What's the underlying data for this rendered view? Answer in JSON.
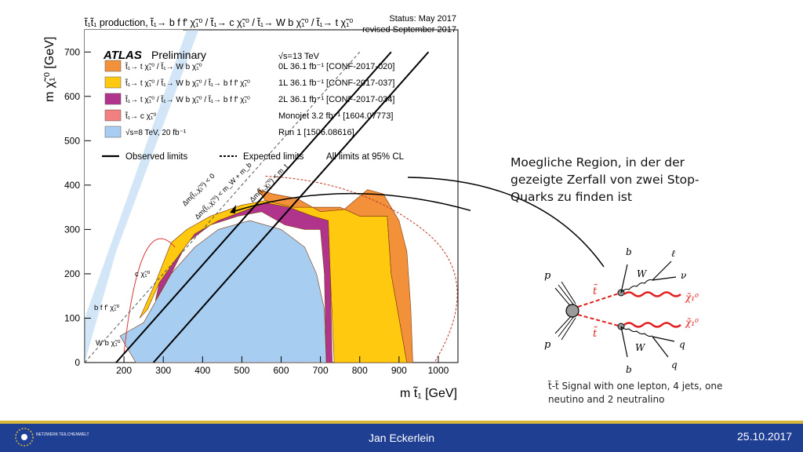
{
  "chart_data": {
    "type": "area",
    "title": "t̃₁t̃₁ production, t̃₁→ b f f' χ̃₁⁰ / t̃₁→ c χ̃₁⁰ / t̃₁→ W b χ̃₁⁰ / t̃₁→ t χ̃₁⁰",
    "status": "Status: May 2017",
    "revised": "revised September 2017",
    "experiment": "ATLAS",
    "experiment_tag": "Preliminary",
    "energy": "√s=13 TeV",
    "xlabel": "m t̃₁ [GeV]",
    "ylabel": "m χ̃₁⁰ [GeV]",
    "xlim": [
      100,
      1050
    ],
    "ylim": [
      0,
      750
    ],
    "x_ticks": [
      200,
      300,
      400,
      500,
      600,
      700,
      800,
      900,
      1000
    ],
    "y_ticks": [
      0,
      100,
      200,
      300,
      400,
      500,
      600,
      700
    ],
    "legend": [
      {
        "decay": "t̃₁→ t χ̃₁⁰ / t̃₁→ W b χ̃₁⁰",
        "analysis": "0L 36.1 fb⁻¹ [CONF-2017-020]",
        "color": "#f2913a"
      },
      {
        "decay": "t̃₁→ t χ̃₁⁰ / t̃₁→ W b χ̃₁⁰ / t̃₁→ b f f' χ̃₁⁰",
        "analysis": "1L 36.1 fb⁻¹ [CONF-2017-037]",
        "color": "#ffc90f"
      },
      {
        "decay": "t̃₁→ t χ̃₁⁰ / t̃₁→ W b χ̃₁⁰ / t̃₁→ b f f' χ̃₁⁰",
        "analysis": "2L 36.1 fb⁻¹ [CONF-2017-034]",
        "color": "#b0338c"
      },
      {
        "decay": "t̃₁→ c χ̃₁⁰",
        "analysis": "Monojet 3.2 fb⁻¹ [1604.07773]",
        "color": "#f28080"
      },
      {
        "decay": "√s=8 TeV, 20 fb⁻¹",
        "analysis": "Run 1 [1506.08616]",
        "color": "#a7cdf1"
      }
    ],
    "line_legend": {
      "observed": "Observed limits",
      "expected": "Expected limits",
      "cl": "All limits at 95% CL"
    },
    "diagonal_labels": [
      "Δm(t̃₁,χ̃₁⁰) < 0",
      "Δm(t̃₁,χ̃₁⁰) < m_W + m_b",
      "Δm(t̃₁,χ̃₁⁰) < m_t"
    ],
    "region_labels": [
      "c χ̃₁⁰",
      "b f f' χ̃₁⁰",
      "W b χ̃₁⁰"
    ],
    "series": [
      {
        "name": "Run 1",
        "points": [
          [
            190,
            60
          ],
          [
            250,
            90
          ],
          [
            320,
            200
          ],
          [
            380,
            260
          ],
          [
            440,
            300
          ],
          [
            520,
            320
          ],
          [
            600,
            300
          ],
          [
            660,
            260
          ],
          [
            690,
            200
          ],
          [
            710,
            120
          ],
          [
            715,
            0
          ],
          [
            230,
            0
          ]
        ]
      },
      {
        "name": "2L",
        "points": [
          [
            280,
            140
          ],
          [
            320,
            200
          ],
          [
            360,
            270
          ],
          [
            420,
            310
          ],
          [
            490,
            330
          ],
          [
            550,
            340
          ],
          [
            610,
            310
          ],
          [
            660,
            300
          ],
          [
            700,
            300
          ],
          [
            710,
            200
          ],
          [
            715,
            0
          ],
          [
            730,
            0
          ],
          [
            725,
            200
          ],
          [
            720,
            320
          ],
          [
            680,
            330
          ],
          [
            620,
            350
          ],
          [
            560,
            360
          ],
          [
            500,
            340
          ],
          [
            440,
            320
          ],
          [
            380,
            290
          ],
          [
            330,
            230
          ],
          [
            290,
            180
          ]
        ]
      },
      {
        "name": "1L",
        "points": [
          [
            240,
            100
          ],
          [
            280,
            180
          ],
          [
            320,
            270
          ],
          [
            360,
            300
          ],
          [
            420,
            330
          ],
          [
            500,
            355
          ],
          [
            560,
            365
          ],
          [
            630,
            350
          ],
          [
            700,
            350
          ],
          [
            750,
            350
          ],
          [
            800,
            330
          ],
          [
            870,
            330
          ],
          [
            880,
            200
          ],
          [
            900,
            100
          ],
          [
            920,
            0
          ],
          [
            735,
            0
          ],
          [
            725,
            200
          ],
          [
            720,
            320
          ],
          [
            680,
            330
          ],
          [
            620,
            350
          ],
          [
            560,
            360
          ],
          [
            500,
            340
          ],
          [
            440,
            320
          ],
          [
            380,
            290
          ],
          [
            330,
            230
          ],
          [
            290,
            180
          ],
          [
            260,
            120
          ]
        ]
      },
      {
        "name": "0L",
        "points": [
          [
            540,
            390
          ],
          [
            580,
            380
          ],
          [
            640,
            370
          ],
          [
            700,
            340
          ],
          [
            760,
            345
          ],
          [
            820,
            390
          ],
          [
            860,
            380
          ],
          [
            900,
            320
          ],
          [
            920,
            250
          ],
          [
            930,
            120
          ],
          [
            935,
            0
          ],
          [
            920,
            0
          ],
          [
            900,
            100
          ],
          [
            880,
            200
          ],
          [
            870,
            330
          ],
          [
            800,
            330
          ],
          [
            750,
            350
          ],
          [
            700,
            350
          ],
          [
            630,
            350
          ],
          [
            560,
            365
          ]
        ]
      }
    ]
  },
  "annotation": {
    "text": "Moegliche Region, in der der gezeigte Zerfall von zwei Stop-Quarks zu finden ist"
  },
  "diagram": {
    "labels": {
      "p_top": "p",
      "p_bottom": "p",
      "t_top": "t̃",
      "t_bottom": "t̃",
      "b_top": "b",
      "b_bottom": "b",
      "W_top": "W",
      "W_bottom": "W",
      "lepton": "ℓ",
      "nu": "ν",
      "q1": "q",
      "q2": "q",
      "chi_top": "χ̃₁⁰",
      "chi_bottom": "χ̃₁⁰"
    },
    "caption": "t̃-t̃ Signal with one lepton, 4 jets, one neutino and 2 neutralino"
  },
  "footer": {
    "presenter": "Jan Eckerlein",
    "date": "25.10.2017",
    "logo_text": "NETZWERK TEILCHENWELT",
    "colors": {
      "bar": "#1f3f93",
      "stripe": "#d8b63a"
    }
  }
}
